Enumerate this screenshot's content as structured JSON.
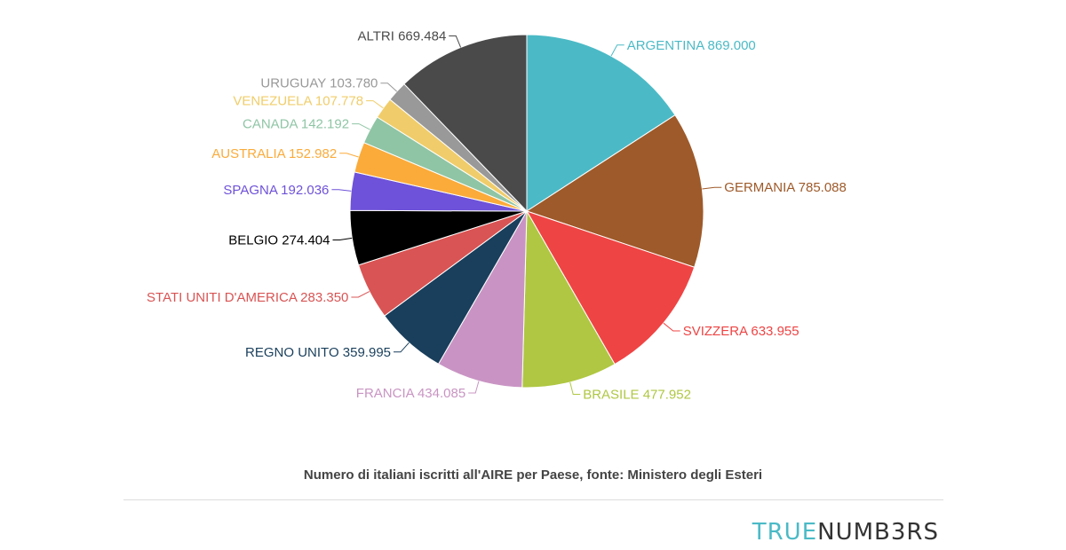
{
  "chart_data": {
    "type": "pie",
    "start": "top",
    "direction": "clockwise",
    "slices": [
      {
        "label": "ARGENTINA 869.000",
        "name": "ARGENTINA",
        "value": 869000,
        "color": "#4bbac6",
        "label_color": "#4bbac6"
      },
      {
        "label": "GERMANIA 785.088",
        "name": "GERMANIA",
        "value": 785088,
        "color": "#9e5a2a",
        "label_color": "#9e5a2a"
      },
      {
        "label": "SVIZZERA 633.955",
        "name": "SVIZZERA",
        "value": 633955,
        "color": "#ef4444",
        "label_color": "#ef4444"
      },
      {
        "label": "BRASILE 477.952",
        "name": "BRASILE",
        "value": 477952,
        "color": "#afc742",
        "label_color": "#afc742"
      },
      {
        "label": "FRANCIA 434.085",
        "name": "FRANCIA",
        "value": 434085,
        "color": "#c994c3",
        "label_color": "#c994c3"
      },
      {
        "label": "REGNO UNITO 359.995",
        "name": "REGNO UNITO",
        "value": 359995,
        "color": "#193f5c",
        "label_color": "#193f5c"
      },
      {
        "label": "STATI UNITI D'AMERICA 283.350",
        "name": "STATI UNITI D'AMERICA",
        "value": 283350,
        "color": "#d95454",
        "label_color": "#d95454"
      },
      {
        "label": "BELGIO 274.404",
        "name": "BELGIO",
        "value": 274404,
        "color": "#000000",
        "label_color": "#000000"
      },
      {
        "label": "SPAGNA 192.036",
        "name": "SPAGNA",
        "value": 192036,
        "color": "#6e52d9",
        "label_color": "#6e52d9"
      },
      {
        "label": "AUSTRALIA 152.982",
        "name": "AUSTRALIA",
        "value": 152982,
        "color": "#fbab3a",
        "label_color": "#fbab3a"
      },
      {
        "label": "CANADA 142.192",
        "name": "CANADA",
        "value": 142192,
        "color": "#8fc5a5",
        "label_color": "#8fc5a5"
      },
      {
        "label": "VENEZUELA 107.778",
        "name": "VENEZUELA",
        "value": 107778,
        "color": "#f0cd6a",
        "label_color": "#f0cd6a"
      },
      {
        "label": "URUGUAY 103.780",
        "name": "URUGUAY",
        "value": 103780,
        "color": "#999999",
        "label_color": "#999999"
      },
      {
        "label": "ALTRI 669.484",
        "name": "ALTRI",
        "value": 669484,
        "color": "#4a4a4a",
        "label_color": "#4a4a4a"
      }
    ]
  },
  "caption": "Numero di italiani iscritti all'AIRE per Paese, fonte: Ministero degli Esteri",
  "logo": {
    "part1": "TRUE",
    "part2": "NUMB3RS"
  }
}
